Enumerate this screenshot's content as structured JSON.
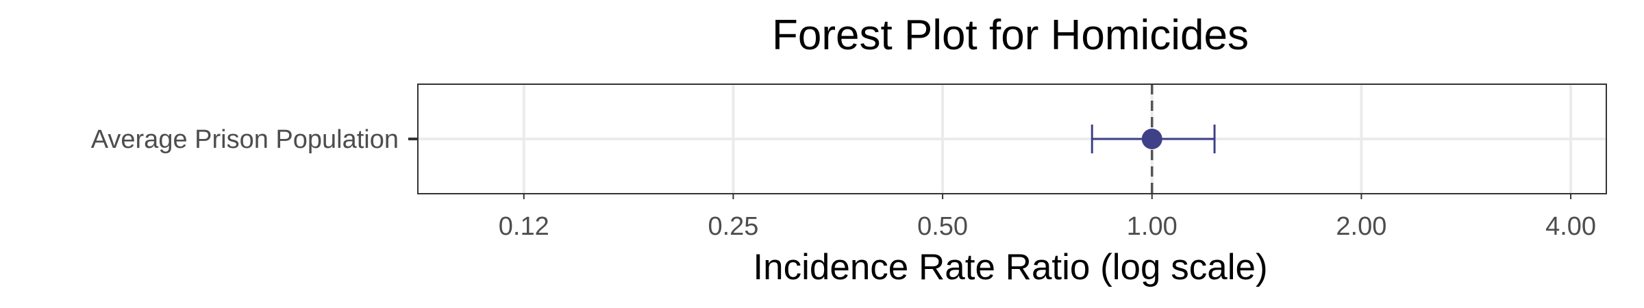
{
  "chart_data": {
    "type": "forest",
    "title": "Forest Plot for Homicides",
    "xlabel": "Incidence Rate Ratio (log scale)",
    "ylabel": "",
    "x_scale": "log2",
    "xlim": [
      0.088,
      4.5
    ],
    "x_ticks": [
      0.125,
      0.25,
      0.5,
      1,
      2,
      4
    ],
    "x_tick_labels": [
      "0.12",
      "0.25",
      "0.50",
      "1.00",
      "2.00",
      "4.00"
    ],
    "reference_line": 1,
    "grid": true,
    "rows": [
      {
        "label": "Average Prison Population",
        "estimate": 1.0,
        "ci_low": 0.82,
        "ci_high": 1.23
      }
    ],
    "colors": {
      "point": "#3f4188",
      "panel_border": "#333333",
      "grid": "#ebebeb",
      "reference": "#555555",
      "text": "#4d4d4d",
      "title": "#000000"
    }
  }
}
